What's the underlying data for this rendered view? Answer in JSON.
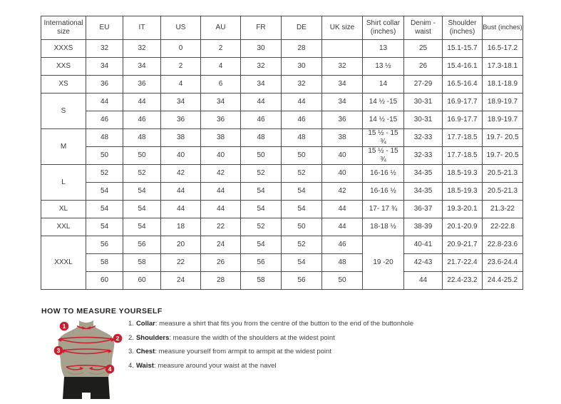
{
  "colors": {
    "accent": "#c8202f",
    "torso": "#a6a18c",
    "shorts": "#1d1d1b",
    "border": "#4c4c4c",
    "text": "#363636",
    "heading": "#231f20"
  },
  "table": {
    "headers": [
      "International size",
      "EU",
      "IT",
      "US",
      "AU",
      "FR",
      "DE",
      "UK size",
      "Shirt collar (inches)",
      "Denim - waist",
      "Shoulder (inches)",
      "Bust (inches)"
    ],
    "rows": [
      {
        "size": "XXXS",
        "sizeSpan": 1,
        "cols": [
          "32",
          "32",
          "0",
          "2",
          "30",
          "28",
          ""
        ],
        "collar": "13",
        "collarSpan": 1,
        "tail": [
          "25",
          "15.1-15.7",
          "16.5-17.2"
        ]
      },
      {
        "size": "XXS",
        "sizeSpan": 1,
        "cols": [
          "34",
          "34",
          "2",
          "4",
          "32",
          "30",
          "32"
        ],
        "collar": "13 ½",
        "collarSpan": 1,
        "tail": [
          "26",
          "15.4-16.1",
          "17.3-18.1"
        ]
      },
      {
        "size": "XS",
        "sizeSpan": 1,
        "cols": [
          "36",
          "36",
          "4",
          "6",
          "34",
          "32",
          "34"
        ],
        "collar": "14",
        "collarSpan": 1,
        "tail": [
          "27-29",
          "16.5-16.4",
          "18.1-18.9"
        ]
      },
      {
        "size": "S",
        "sizeSpan": 2,
        "cols": [
          "44",
          "44",
          "34",
          "34",
          "44",
          "44",
          "34"
        ],
        "collar": "14 ½ -15",
        "collarSpan": 1,
        "tail": [
          "30-31",
          "16.9-17.7",
          "18.9-19.7"
        ]
      },
      {
        "cols": [
          "46",
          "46",
          "36",
          "36",
          "46",
          "46",
          "36"
        ],
        "collar": "14 ½ -15",
        "collarSpan": 1,
        "tail": [
          "30-31",
          "16.9-17.7",
          "18.9-19.7"
        ]
      },
      {
        "size": "M",
        "sizeSpan": 2,
        "cols": [
          "48",
          "48",
          "38",
          "38",
          "48",
          "48",
          "38"
        ],
        "collar": "15 ½ - 15 ¾",
        "collarSpan": 1,
        "tail": [
          "32-33",
          "17.7-18.5",
          "19.7- 20.5"
        ]
      },
      {
        "cols": [
          "50",
          "50",
          "40",
          "40",
          "50",
          "50",
          "40"
        ],
        "collar": "15 ½ - 15 ¾",
        "collarSpan": 1,
        "tail": [
          "32-33",
          "17.7-18.5",
          "19.7- 20.5"
        ]
      },
      {
        "size": "L",
        "sizeSpan": 2,
        "cols": [
          "52",
          "52",
          "42",
          "42",
          "52",
          "52",
          "40"
        ],
        "collar": "16-16 ½",
        "collarSpan": 1,
        "tail": [
          "34-35",
          "18.5-19.3",
          "20.5-21.3"
        ]
      },
      {
        "cols": [
          "54",
          "54",
          "44",
          "44",
          "54",
          "54",
          "42"
        ],
        "collar": "16-16 ½",
        "collarSpan": 1,
        "tail": [
          "34-35",
          "18.5-19.3",
          "20.5-21.3"
        ]
      },
      {
        "size": "XL",
        "sizeSpan": 1,
        "cols": [
          "54",
          "54",
          "44",
          "44",
          "54",
          "54",
          "44"
        ],
        "collar": "17- 17 ¾",
        "collarSpan": 1,
        "tail": [
          "36-37",
          "19.3-20.1",
          "21.3-22"
        ]
      },
      {
        "size": "XXL",
        "sizeSpan": 1,
        "cols": [
          "54",
          "54",
          "18",
          "22",
          "52",
          "50",
          "44"
        ],
        "collar": "18-18 ½",
        "collarSpan": 1,
        "tail": [
          "38-39",
          "20.1-20.9",
          "22-22.8"
        ]
      },
      {
        "size": "XXXL",
        "sizeSpan": 3,
        "cols": [
          "56",
          "56",
          "20",
          "24",
          "54",
          "52",
          "46"
        ],
        "collar": "19 -20",
        "collarSpan": 3,
        "tail": [
          "40-41",
          "20.9-21.7",
          "22.8-23.6"
        ]
      },
      {
        "cols": [
          "58",
          "58",
          "22",
          "26",
          "56",
          "54",
          "48"
        ],
        "tail": [
          "42-43",
          "21.7-22.4",
          "23.6-24.4"
        ]
      },
      {
        "cols": [
          "60",
          "60",
          "24",
          "28",
          "58",
          "56",
          "50"
        ],
        "tail": [
          "44",
          "22.4-23.2",
          "24.4-25.2"
        ]
      }
    ]
  },
  "measure": {
    "heading": "HOW TO MEASURE YOURSELF",
    "instructions": [
      {
        "num": "1.",
        "label": "Collar",
        "text": ": measure a shirt that fits you from the centre of the button to the end of the buttonhole"
      },
      {
        "num": "2.",
        "label": "Shoulders",
        "text": ": measure the width of the shoulders at the widest point"
      },
      {
        "num": "3.",
        "label": "Chest",
        "text": ": measure yourself from armpit to armpit at the widest point"
      },
      {
        "num": "4.",
        "label": "Waist",
        "text": ": measure around your waist at the navel"
      }
    ],
    "markers": [
      "1",
      "2",
      "3",
      "4"
    ]
  }
}
